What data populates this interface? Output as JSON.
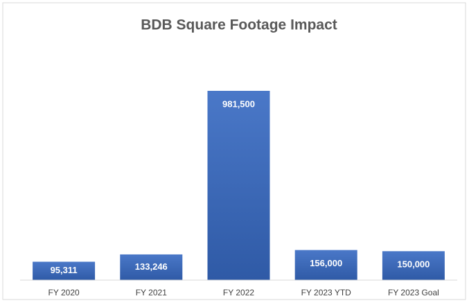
{
  "chart_data": {
    "type": "bar",
    "title": "BDB Square Footage Impact",
    "categories": [
      "FY 2020",
      "FY 2021",
      "FY 2022",
      "FY 2023 YTD",
      "FY 2023 Goal"
    ],
    "values": [
      95311,
      133246,
      981500,
      156000,
      150000
    ],
    "value_labels": [
      "95,311",
      "133,246",
      "981,500",
      "156,000",
      "150,000"
    ],
    "color": "#4472c4"
  }
}
